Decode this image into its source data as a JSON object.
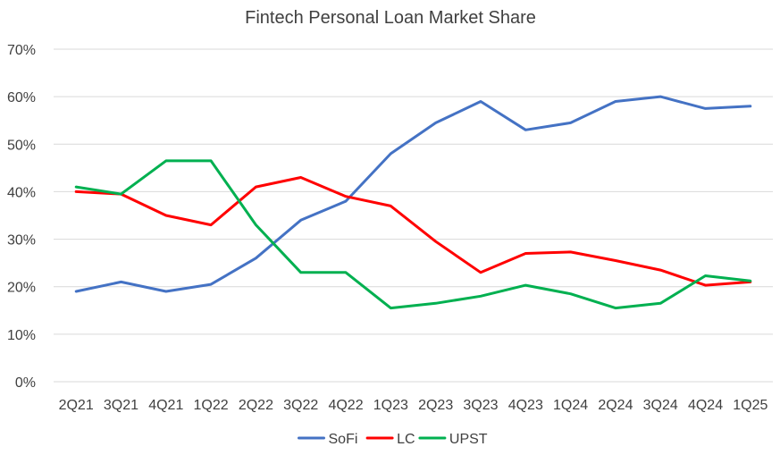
{
  "chart_data": {
    "type": "line",
    "title": "Fintech Personal Loan Market Share",
    "xlabel": "",
    "ylabel": "",
    "categories": [
      "2Q21",
      "3Q21",
      "4Q21",
      "1Q22",
      "2Q22",
      "3Q22",
      "4Q22",
      "1Q23",
      "2Q23",
      "3Q23",
      "4Q23",
      "1Q24",
      "2Q24",
      "3Q24",
      "4Q24",
      "1Q25"
    ],
    "ylim": [
      0,
      70
    ],
    "yticks": [
      "0%",
      "10%",
      "20%",
      "30%",
      "40%",
      "50%",
      "60%",
      "70%"
    ],
    "grid": true,
    "legend_position": "bottom",
    "series": [
      {
        "name": "SoFi",
        "color": "#4472C4",
        "values": [
          19,
          21,
          19,
          20.5,
          26,
          34,
          38,
          48,
          54.5,
          59,
          53,
          54.5,
          59,
          60,
          57.5,
          58
        ]
      },
      {
        "name": "LC",
        "color": "#FF0000",
        "values": [
          40,
          39.5,
          35,
          33,
          41,
          43,
          39,
          37,
          29.5,
          23,
          27,
          27.3,
          25.5,
          23.5,
          20.3,
          21
        ]
      },
      {
        "name": "UPST",
        "color": "#00B050",
        "values": [
          41,
          39.5,
          46.5,
          46.5,
          33,
          23,
          23,
          15.5,
          16.5,
          18,
          20.3,
          18.5,
          15.5,
          16.5,
          22.3,
          21.2
        ]
      }
    ]
  }
}
